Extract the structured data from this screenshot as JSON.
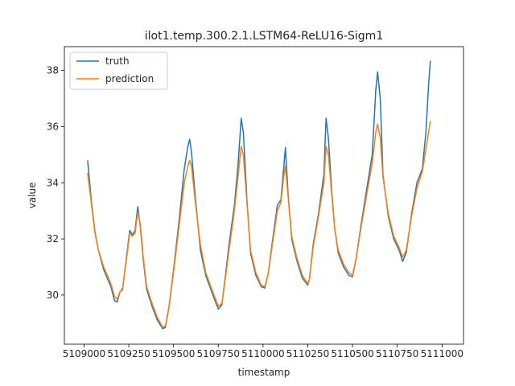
{
  "chart_data": {
    "type": "line",
    "title": "ilot1.temp.300.2.1.LSTM64-ReLU16-Sigm1",
    "xlabel": "timestamp",
    "ylabel": "value",
    "xlim": [
      5108890,
      5111120
    ],
    "ylim": [
      28.25,
      38.85
    ],
    "xticks": [
      5109000,
      5109250,
      5109500,
      5109750,
      5110000,
      5110250,
      5110500,
      5110750,
      5111000
    ],
    "xtick_labels": [
      "5109000",
      "5109250",
      "5109500",
      "5109750",
      "5110000",
      "5110250",
      "5110500",
      "5110750",
      "5111000"
    ],
    "yticks": [
      30,
      32,
      34,
      36,
      38
    ],
    "ytick_labels": [
      "30",
      "32",
      "34",
      "36",
      "38"
    ],
    "grid": false,
    "legend": {
      "placement": "top-left"
    },
    "series": [
      {
        "name": "truth",
        "color": "#1f77b4",
        "points": [
          [
            5109020,
            34.8
          ],
          [
            5109040,
            33.4
          ],
          [
            5109060,
            32.3
          ],
          [
            5109080,
            31.6
          ],
          [
            5109110,
            30.9
          ],
          [
            5109150,
            30.3
          ],
          [
            5109170,
            29.8
          ],
          [
            5109185,
            29.75
          ],
          [
            5109200,
            30.1
          ],
          [
            5109215,
            30.2
          ],
          [
            5109240,
            31.5
          ],
          [
            5109255,
            32.3
          ],
          [
            5109270,
            32.15
          ],
          [
            5109285,
            32.3
          ],
          [
            5109300,
            33.15
          ],
          [
            5109315,
            32.4
          ],
          [
            5109330,
            31.3
          ],
          [
            5109350,
            30.2
          ],
          [
            5109380,
            29.6
          ],
          [
            5109410,
            29.1
          ],
          [
            5109440,
            28.8
          ],
          [
            5109455,
            28.85
          ],
          [
            5109475,
            29.6
          ],
          [
            5109500,
            30.9
          ],
          [
            5109530,
            32.6
          ],
          [
            5109560,
            34.5
          ],
          [
            5109580,
            35.3
          ],
          [
            5109590,
            35.55
          ],
          [
            5109600,
            35.1
          ],
          [
            5109620,
            33.6
          ],
          [
            5109650,
            31.6
          ],
          [
            5109680,
            30.7
          ],
          [
            5109720,
            30.0
          ],
          [
            5109750,
            29.5
          ],
          [
            5109770,
            29.65
          ],
          [
            5109790,
            30.7
          ],
          [
            5109810,
            31.8
          ],
          [
            5109840,
            33.2
          ],
          [
            5109860,
            34.6
          ],
          [
            5109878,
            36.3
          ],
          [
            5109890,
            35.8
          ],
          [
            5109910,
            33.4
          ],
          [
            5109930,
            31.5
          ],
          [
            5109960,
            30.7
          ],
          [
            5109990,
            30.3
          ],
          [
            5110010,
            30.25
          ],
          [
            5110030,
            30.8
          ],
          [
            5110050,
            31.8
          ],
          [
            5110080,
            33.2
          ],
          [
            5110100,
            33.4
          ],
          [
            5110115,
            34.5
          ],
          [
            5110125,
            35.25
          ],
          [
            5110140,
            33.6
          ],
          [
            5110160,
            32.0
          ],
          [
            5110190,
            31.2
          ],
          [
            5110220,
            30.6
          ],
          [
            5110250,
            30.35
          ],
          [
            5110260,
            30.6
          ],
          [
            5110280,
            31.8
          ],
          [
            5110310,
            32.9
          ],
          [
            5110340,
            34.3
          ],
          [
            5110352,
            36.3
          ],
          [
            5110365,
            35.6
          ],
          [
            5110385,
            33.6
          ],
          [
            5110400,
            32.4
          ],
          [
            5110420,
            31.5
          ],
          [
            5110450,
            31.0
          ],
          [
            5110480,
            30.7
          ],
          [
            5110500,
            30.65
          ],
          [
            5110520,
            31.3
          ],
          [
            5110550,
            32.6
          ],
          [
            5110580,
            33.8
          ],
          [
            5110610,
            35.0
          ],
          [
            5110630,
            37.3
          ],
          [
            5110640,
            37.95
          ],
          [
            5110655,
            37.0
          ],
          [
            5110670,
            34.3
          ],
          [
            5110700,
            32.8
          ],
          [
            5110730,
            32.0
          ],
          [
            5110760,
            31.6
          ],
          [
            5110780,
            31.2
          ],
          [
            5110800,
            31.5
          ],
          [
            5110830,
            32.9
          ],
          [
            5110860,
            34.0
          ],
          [
            5110890,
            34.5
          ],
          [
            5110910,
            35.8
          ],
          [
            5110925,
            37.5
          ],
          [
            5110935,
            38.35
          ]
        ]
      },
      {
        "name": "prediction",
        "color": "#ff7f0e",
        "points": [
          [
            5109020,
            34.35
          ],
          [
            5109040,
            33.3
          ],
          [
            5109060,
            32.25
          ],
          [
            5109080,
            31.6
          ],
          [
            5109110,
            31.0
          ],
          [
            5109150,
            30.4
          ],
          [
            5109170,
            29.95
          ],
          [
            5109185,
            29.85
          ],
          [
            5109200,
            30.1
          ],
          [
            5109215,
            30.25
          ],
          [
            5109240,
            31.4
          ],
          [
            5109255,
            32.2
          ],
          [
            5109270,
            32.1
          ],
          [
            5109285,
            32.2
          ],
          [
            5109300,
            32.95
          ],
          [
            5109315,
            32.5
          ],
          [
            5109330,
            31.4
          ],
          [
            5109350,
            30.3
          ],
          [
            5109380,
            29.7
          ],
          [
            5109410,
            29.2
          ],
          [
            5109440,
            28.85
          ],
          [
            5109455,
            28.9
          ],
          [
            5109475,
            29.6
          ],
          [
            5109500,
            30.8
          ],
          [
            5109530,
            32.4
          ],
          [
            5109560,
            34.0
          ],
          [
            5109580,
            34.6
          ],
          [
            5109590,
            34.8
          ],
          [
            5109600,
            34.6
          ],
          [
            5109620,
            33.4
          ],
          [
            5109650,
            31.8
          ],
          [
            5109680,
            30.8
          ],
          [
            5109720,
            30.1
          ],
          [
            5109750,
            29.6
          ],
          [
            5109770,
            29.7
          ],
          [
            5109790,
            30.6
          ],
          [
            5109810,
            31.6
          ],
          [
            5109840,
            33.0
          ],
          [
            5109860,
            34.2
          ],
          [
            5109878,
            35.3
          ],
          [
            5109890,
            35.0
          ],
          [
            5109910,
            33.3
          ],
          [
            5109930,
            31.6
          ],
          [
            5109960,
            30.8
          ],
          [
            5109990,
            30.35
          ],
          [
            5110010,
            30.3
          ],
          [
            5110030,
            30.8
          ],
          [
            5110050,
            31.7
          ],
          [
            5110080,
            33.0
          ],
          [
            5110100,
            33.3
          ],
          [
            5110115,
            34.2
          ],
          [
            5110125,
            34.6
          ],
          [
            5110140,
            33.5
          ],
          [
            5110160,
            32.1
          ],
          [
            5110190,
            31.3
          ],
          [
            5110220,
            30.7
          ],
          [
            5110250,
            30.4
          ],
          [
            5110260,
            30.6
          ],
          [
            5110280,
            31.7
          ],
          [
            5110310,
            32.8
          ],
          [
            5110340,
            34.0
          ],
          [
            5110352,
            35.3
          ],
          [
            5110365,
            35.0
          ],
          [
            5110385,
            33.5
          ],
          [
            5110400,
            32.4
          ],
          [
            5110420,
            31.6
          ],
          [
            5110450,
            31.1
          ],
          [
            5110480,
            30.8
          ],
          [
            5110500,
            30.7
          ],
          [
            5110520,
            31.3
          ],
          [
            5110550,
            32.5
          ],
          [
            5110580,
            33.6
          ],
          [
            5110610,
            34.7
          ],
          [
            5110630,
            35.8
          ],
          [
            5110640,
            36.1
          ],
          [
            5110655,
            35.6
          ],
          [
            5110670,
            34.2
          ],
          [
            5110700,
            32.9
          ],
          [
            5110730,
            32.1
          ],
          [
            5110760,
            31.7
          ],
          [
            5110780,
            31.35
          ],
          [
            5110800,
            31.6
          ],
          [
            5110830,
            32.8
          ],
          [
            5110860,
            33.8
          ],
          [
            5110890,
            34.4
          ],
          [
            5110910,
            35.2
          ],
          [
            5110925,
            35.8
          ],
          [
            5110935,
            36.2
          ]
        ]
      }
    ]
  }
}
